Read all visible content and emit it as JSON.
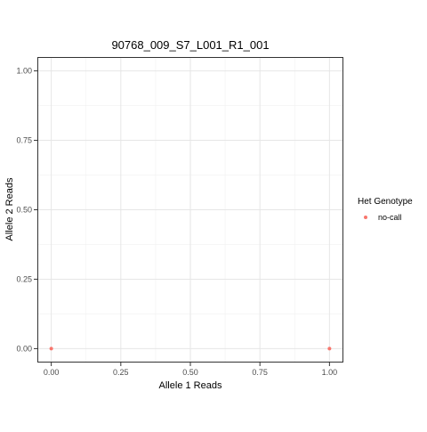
{
  "chart_data": {
    "type": "scatter",
    "title": "90768_009_S7_L001_R1_001",
    "xlabel": "Allele 1 Reads",
    "ylabel": "Allele 2 Reads",
    "xlim": [
      -0.05,
      1.05
    ],
    "ylim": [
      -0.05,
      1.05
    ],
    "x_ticks": [
      0,
      0.25,
      0.5,
      0.75,
      1
    ],
    "x_tick_labels": [
      "0.00",
      "0.25",
      "0.50",
      "0.75",
      "1.00"
    ],
    "y_ticks": [
      0,
      0.25,
      0.5,
      0.75,
      1
    ],
    "y_tick_labels": [
      "0.00",
      "0.25",
      "0.50",
      "0.75",
      "1.00"
    ],
    "grid": true,
    "legend": {
      "title": "Het Genotype",
      "placement": "right",
      "entries": [
        {
          "label": "no-call",
          "color": "#F8766D"
        }
      ]
    },
    "series": [
      {
        "name": "no-call",
        "color": "#F8766D",
        "points": [
          {
            "x": 0,
            "y": 0
          },
          {
            "x": 1,
            "y": 0
          }
        ]
      }
    ]
  }
}
